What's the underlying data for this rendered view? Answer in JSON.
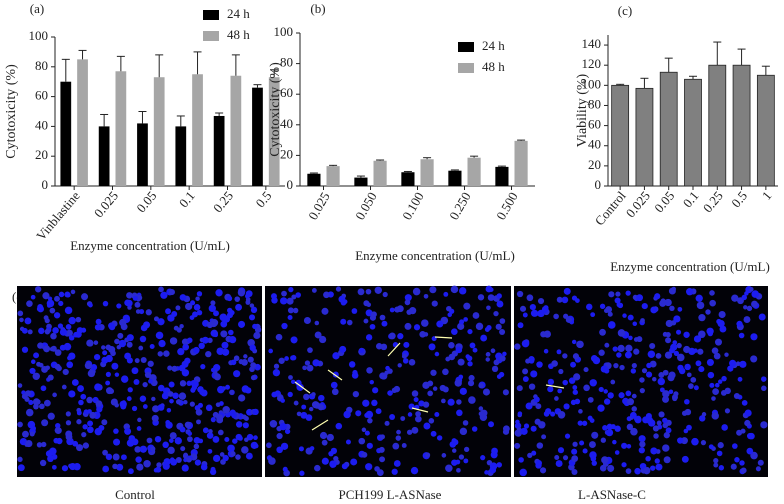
{
  "chart_data": [
    {
      "type": "bar",
      "panel": "(a)",
      "ylabel": "Cytotoxicity (%)",
      "xlabel": "Enzyme concentration (U/mL)",
      "categories": [
        "Vinblastine",
        "0.025",
        "0.05",
        "0.1",
        "0.25",
        "0.5"
      ],
      "series": [
        {
          "name": "24 h",
          "color": "#000000",
          "values": [
            70,
            40,
            42,
            40,
            47,
            66
          ],
          "errors": [
            15,
            8,
            8,
            7,
            2,
            2
          ]
        },
        {
          "name": "48 h",
          "color": "#a6a6a6",
          "values": [
            85,
            77,
            73,
            75,
            74,
            73
          ],
          "errors": [
            6,
            10,
            15,
            15,
            14,
            5
          ]
        }
      ],
      "ylim": [
        0,
        100
      ],
      "yticks": [
        0,
        20,
        40,
        60,
        80,
        100
      ],
      "legend": "top-right"
    },
    {
      "type": "bar",
      "panel": "(b)",
      "ylabel": "Cytotoxicity (%)",
      "xlabel": "Enzyme concentration (U/mL)",
      "categories": [
        "0.025",
        "0.050",
        "0.100",
        "0.250",
        "0.500"
      ],
      "series": [
        {
          "name": "24 h",
          "color": "#000000",
          "values": [
            8,
            5.5,
            9,
            10,
            12.5
          ],
          "errors": [
            0.5,
            1,
            0.5,
            0.5,
            0.5
          ]
        },
        {
          "name": "48 h",
          "color": "#a6a6a6",
          "values": [
            13,
            16.5,
            17.5,
            18.5,
            29.5
          ],
          "errors": [
            0.5,
            0.5,
            1,
            1,
            0.5
          ]
        }
      ],
      "ylim": [
        0,
        100
      ],
      "yticks": [
        0,
        20,
        40,
        60,
        80,
        100
      ],
      "legend": "top-right"
    },
    {
      "type": "bar",
      "panel": "(c)",
      "ylabel": "Viability (%)",
      "xlabel": "Enzyme concentration (U/mL)",
      "categories": [
        "Control",
        "0.025",
        "0.05",
        "0.1",
        "0.25",
        "0.5",
        "1"
      ],
      "values": [
        100,
        97,
        113,
        106,
        120,
        120,
        110
      ],
      "errors": [
        1,
        10,
        14,
        3,
        23,
        16,
        9
      ],
      "color": "#808080",
      "ylim": [
        0,
        150
      ],
      "yticks": [
        0,
        20,
        40,
        60,
        80,
        100,
        120,
        140
      ]
    }
  ],
  "panel_d": {
    "label": "(d)",
    "captions": [
      "Control",
      "PCH199 L-ASNase",
      "L-ASNase-C"
    ]
  }
}
